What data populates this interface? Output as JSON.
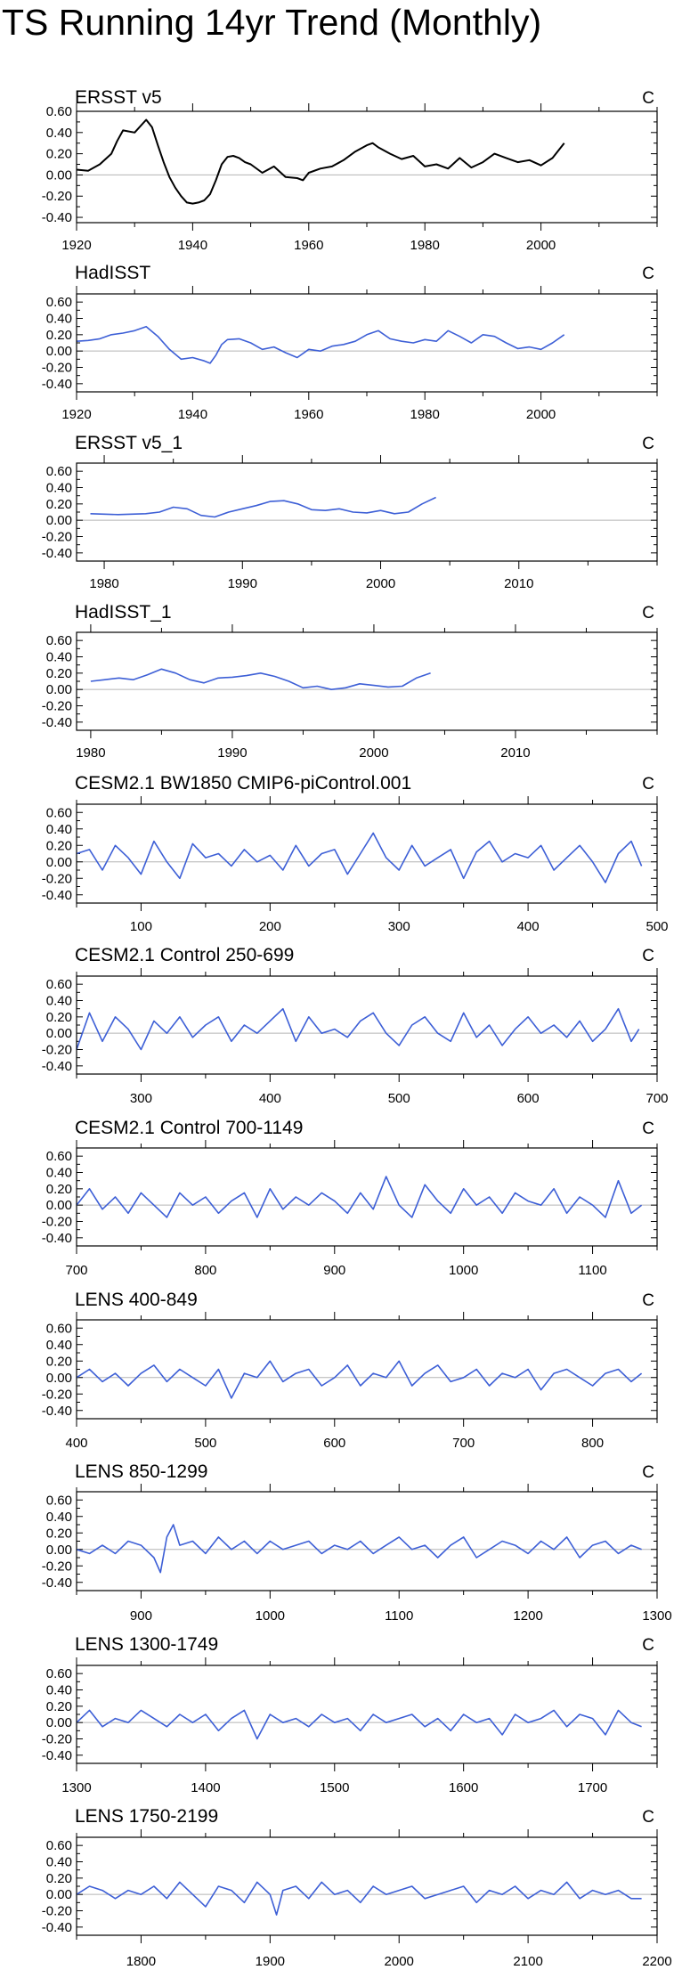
{
  "title": "TS Running 14yr Trend (Monthly)",
  "chart_data": [
    {
      "type": "line",
      "title": "ERSST v5",
      "unit": "C",
      "color": "#000000",
      "xlim": [
        1920,
        2020
      ],
      "ylim": [
        -0.45,
        0.6
      ],
      "yticks": [
        "0.60",
        "0.40",
        "0.20",
        "0.00",
        "-0.20",
        "-0.40"
      ],
      "ytick_values": [
        0.6,
        0.4,
        0.2,
        0.0,
        -0.2,
        -0.4
      ],
      "xticks": [
        1920,
        1940,
        1960,
        1980,
        2000
      ],
      "x": [
        1920,
        1922,
        1924,
        1926,
        1927,
        1928,
        1930,
        1932,
        1933,
        1934,
        1935,
        1936,
        1937,
        1938,
        1939,
        1940,
        1941,
        1942,
        1943,
        1944,
        1945,
        1946,
        1947,
        1948,
        1949,
        1950,
        1952,
        1954,
        1956,
        1958,
        1959,
        1960,
        1962,
        1964,
        1966,
        1968,
        1970,
        1971,
        1972,
        1974,
        1976,
        1978,
        1980,
        1982,
        1984,
        1986,
        1988,
        1990,
        1992,
        1994,
        1996,
        1998,
        2000,
        2002,
        2004
      ],
      "y": [
        0.05,
        0.04,
        0.1,
        0.2,
        0.32,
        0.42,
        0.4,
        0.52,
        0.45,
        0.28,
        0.12,
        -0.02,
        -0.12,
        -0.2,
        -0.26,
        -0.27,
        -0.26,
        -0.24,
        -0.18,
        -0.05,
        0.1,
        0.17,
        0.18,
        0.16,
        0.12,
        0.1,
        0.02,
        0.08,
        -0.02,
        -0.03,
        -0.05,
        0.02,
        0.06,
        0.08,
        0.14,
        0.22,
        0.28,
        0.3,
        0.26,
        0.2,
        0.15,
        0.18,
        0.08,
        0.1,
        0.06,
        0.16,
        0.07,
        0.12,
        0.2,
        0.16,
        0.12,
        0.14,
        0.09,
        0.16,
        0.3
      ]
    },
    {
      "type": "line",
      "title": "HadISST",
      "unit": "C",
      "color": "#3d5fd6",
      "xlim": [
        1920,
        2020
      ],
      "ylim": [
        -0.5,
        0.7
      ],
      "yticks": [
        "0.60",
        "0.40",
        "0.20",
        "0.00",
        "-0.20",
        "-0.40"
      ],
      "ytick_values": [
        0.6,
        0.4,
        0.2,
        0.0,
        -0.2,
        -0.4
      ],
      "xticks": [
        1920,
        1940,
        1960,
        1980,
        2000
      ],
      "x": [
        1920,
        1922,
        1924,
        1926,
        1928,
        1930,
        1932,
        1934,
        1936,
        1938,
        1940,
        1942,
        1943,
        1944,
        1945,
        1946,
        1948,
        1950,
        1952,
        1954,
        1956,
        1958,
        1960,
        1962,
        1964,
        1966,
        1968,
        1970,
        1972,
        1974,
        1976,
        1978,
        1980,
        1982,
        1984,
        1986,
        1988,
        1990,
        1992,
        1994,
        1996,
        1998,
        2000,
        2002,
        2004
      ],
      "y": [
        0.12,
        0.13,
        0.15,
        0.2,
        0.22,
        0.25,
        0.3,
        0.18,
        0.02,
        -0.1,
        -0.08,
        -0.12,
        -0.15,
        -0.05,
        0.08,
        0.14,
        0.15,
        0.1,
        0.02,
        0.05,
        -0.02,
        -0.08,
        0.02,
        0.0,
        0.06,
        0.08,
        0.12,
        0.2,
        0.25,
        0.15,
        0.12,
        0.1,
        0.14,
        0.12,
        0.25,
        0.18,
        0.1,
        0.2,
        0.18,
        0.1,
        0.03,
        0.05,
        0.02,
        0.1,
        0.2
      ]
    },
    {
      "type": "line",
      "title": "ERSST v5_1",
      "unit": "C",
      "color": "#3d5fd6",
      "xlim": [
        1978,
        2020
      ],
      "ylim": [
        -0.5,
        0.7
      ],
      "yticks": [
        "0.60",
        "0.40",
        "0.20",
        "0.00",
        "-0.20",
        "-0.40"
      ],
      "ytick_values": [
        0.6,
        0.4,
        0.2,
        0.0,
        -0.2,
        -0.4
      ],
      "xticks": [
        1980,
        1990,
        2000,
        2010
      ],
      "x": [
        1979,
        1981,
        1983,
        1984,
        1985,
        1986,
        1987,
        1988,
        1989,
        1990,
        1991,
        1992,
        1993,
        1994,
        1995,
        1996,
        1997,
        1998,
        1999,
        2000,
        2001,
        2002,
        2003,
        2004
      ],
      "y": [
        0.08,
        0.07,
        0.08,
        0.1,
        0.16,
        0.14,
        0.06,
        0.04,
        0.1,
        0.14,
        0.18,
        0.23,
        0.24,
        0.2,
        0.13,
        0.12,
        0.14,
        0.1,
        0.09,
        0.12,
        0.08,
        0.1,
        0.2,
        0.28
      ]
    },
    {
      "type": "line",
      "title": "HadISST_1",
      "unit": "C",
      "color": "#3d5fd6",
      "xlim": [
        1979,
        2020
      ],
      "ylim": [
        -0.5,
        0.7
      ],
      "yticks": [
        "0.60",
        "0.40",
        "0.20",
        "0.00",
        "-0.20",
        "-0.40"
      ],
      "ytick_values": [
        0.6,
        0.4,
        0.2,
        0.0,
        -0.2,
        -0.4
      ],
      "xticks": [
        1980,
        1990,
        2000,
        2010
      ],
      "x": [
        1980,
        1981,
        1982,
        1983,
        1984,
        1985,
        1986,
        1987,
        1988,
        1989,
        1990,
        1991,
        1992,
        1993,
        1994,
        1995,
        1996,
        1997,
        1998,
        1999,
        2000,
        2001,
        2002,
        2003,
        2004
      ],
      "y": [
        0.1,
        0.12,
        0.14,
        0.12,
        0.18,
        0.25,
        0.2,
        0.12,
        0.08,
        0.14,
        0.15,
        0.17,
        0.2,
        0.16,
        0.1,
        0.02,
        0.04,
        0.0,
        0.02,
        0.07,
        0.05,
        0.03,
        0.04,
        0.14,
        0.2
      ]
    },
    {
      "type": "line",
      "title": "CESM2.1 BW1850 CMIP6-piControl.001",
      "unit": "C",
      "color": "#3d5fd6",
      "xlim": [
        50,
        500
      ],
      "ylim": [
        -0.5,
        0.7
      ],
      "yticks": [
        "0.60",
        "0.40",
        "0.20",
        "0.00",
        "-0.20",
        "-0.40"
      ],
      "ytick_values": [
        0.6,
        0.4,
        0.2,
        0.0,
        -0.2,
        -0.4
      ],
      "xticks": [
        100,
        200,
        300,
        400,
        500
      ],
      "x": [
        50,
        60,
        70,
        80,
        90,
        100,
        110,
        120,
        130,
        140,
        150,
        160,
        170,
        180,
        190,
        200,
        210,
        220,
        230,
        240,
        250,
        260,
        270,
        280,
        290,
        300,
        310,
        320,
        330,
        340,
        350,
        360,
        370,
        380,
        390,
        400,
        410,
        420,
        430,
        440,
        450,
        460,
        470,
        480,
        488
      ],
      "y": [
        0.1,
        0.15,
        -0.1,
        0.2,
        0.05,
        -0.15,
        0.25,
        0.0,
        -0.2,
        0.22,
        0.05,
        0.1,
        -0.05,
        0.15,
        0.0,
        0.08,
        -0.1,
        0.2,
        -0.05,
        0.1,
        0.15,
        -0.15,
        0.1,
        0.35,
        0.05,
        -0.1,
        0.2,
        -0.05,
        0.05,
        0.15,
        -0.2,
        0.12,
        0.25,
        0.0,
        0.1,
        0.05,
        0.2,
        -0.1,
        0.05,
        0.2,
        0.0,
        -0.25,
        0.1,
        0.25,
        -0.05
      ]
    },
    {
      "type": "line",
      "title": "CESM2.1 Control 250-699",
      "unit": "C",
      "color": "#3d5fd6",
      "xlim": [
        250,
        700
      ],
      "ylim": [
        -0.5,
        0.7
      ],
      "yticks": [
        "0.60",
        "0.40",
        "0.20",
        "0.00",
        "-0.20",
        "-0.40"
      ],
      "ytick_values": [
        0.6,
        0.4,
        0.2,
        0.0,
        -0.2,
        -0.4
      ],
      "xticks": [
        300,
        400,
        500,
        600,
        700
      ],
      "x": [
        250,
        260,
        270,
        280,
        290,
        300,
        310,
        320,
        330,
        340,
        350,
        360,
        370,
        380,
        390,
        400,
        410,
        420,
        430,
        440,
        450,
        460,
        470,
        480,
        490,
        500,
        510,
        520,
        530,
        540,
        550,
        560,
        570,
        580,
        590,
        600,
        610,
        620,
        630,
        640,
        650,
        660,
        670,
        680,
        686
      ],
      "y": [
        -0.2,
        0.25,
        -0.1,
        0.2,
        0.05,
        -0.2,
        0.15,
        0.0,
        0.2,
        -0.05,
        0.1,
        0.2,
        -0.1,
        0.1,
        0.0,
        0.15,
        0.3,
        -0.1,
        0.2,
        0.0,
        0.05,
        -0.05,
        0.15,
        0.25,
        0.0,
        -0.15,
        0.1,
        0.2,
        0.0,
        -0.1,
        0.25,
        -0.05,
        0.1,
        -0.15,
        0.05,
        0.2,
        0.0,
        0.1,
        -0.05,
        0.15,
        -0.1,
        0.05,
        0.3,
        -0.1,
        0.05
      ]
    },
    {
      "type": "line",
      "title": "CESM2.1 Control 700-1149",
      "unit": "C",
      "color": "#3d5fd6",
      "xlim": [
        700,
        1150
      ],
      "ylim": [
        -0.5,
        0.7
      ],
      "yticks": [
        "0.60",
        "0.40",
        "0.20",
        "0.00",
        "-0.20",
        "-0.40"
      ],
      "ytick_values": [
        0.6,
        0.4,
        0.2,
        0.0,
        -0.2,
        -0.4
      ],
      "xticks": [
        700,
        800,
        900,
        1000,
        1100
      ],
      "x": [
        700,
        710,
        720,
        730,
        740,
        750,
        760,
        770,
        780,
        790,
        800,
        810,
        820,
        830,
        840,
        850,
        860,
        870,
        880,
        890,
        900,
        910,
        920,
        930,
        940,
        950,
        960,
        970,
        980,
        990,
        1000,
        1010,
        1020,
        1030,
        1040,
        1050,
        1060,
        1070,
        1080,
        1090,
        1100,
        1110,
        1120,
        1130,
        1138
      ],
      "y": [
        0.0,
        0.2,
        -0.05,
        0.1,
        -0.1,
        0.15,
        0.0,
        -0.15,
        0.15,
        0.0,
        0.1,
        -0.1,
        0.05,
        0.15,
        -0.15,
        0.2,
        -0.05,
        0.1,
        0.0,
        0.15,
        0.05,
        -0.1,
        0.15,
        -0.05,
        0.35,
        0.0,
        -0.15,
        0.25,
        0.05,
        -0.1,
        0.2,
        0.0,
        0.1,
        -0.1,
        0.15,
        0.05,
        0.0,
        0.2,
        -0.1,
        0.1,
        0.0,
        -0.15,
        0.3,
        -0.1,
        0.0
      ]
    },
    {
      "type": "line",
      "title": "LENS 400-849",
      "unit": "C",
      "color": "#3d5fd6",
      "xlim": [
        400,
        850
      ],
      "ylim": [
        -0.5,
        0.7
      ],
      "yticks": [
        "0.60",
        "0.40",
        "0.20",
        "0.00",
        "-0.20",
        "-0.40"
      ],
      "ytick_values": [
        0.6,
        0.4,
        0.2,
        0.0,
        -0.2,
        -0.4
      ],
      "xticks": [
        400,
        500,
        600,
        700,
        800
      ],
      "x": [
        400,
        410,
        420,
        430,
        440,
        450,
        460,
        470,
        480,
        490,
        500,
        510,
        520,
        530,
        540,
        550,
        560,
        570,
        580,
        590,
        600,
        610,
        620,
        630,
        640,
        650,
        660,
        670,
        680,
        690,
        700,
        710,
        720,
        730,
        740,
        750,
        760,
        770,
        780,
        790,
        800,
        810,
        820,
        830,
        838
      ],
      "y": [
        0.0,
        0.1,
        -0.05,
        0.05,
        -0.1,
        0.05,
        0.15,
        -0.05,
        0.1,
        0.0,
        -0.1,
        0.1,
        -0.25,
        0.05,
        0.0,
        0.2,
        -0.05,
        0.05,
        0.1,
        -0.1,
        0.0,
        0.15,
        -0.1,
        0.05,
        0.0,
        0.2,
        -0.1,
        0.05,
        0.15,
        -0.05,
        0.0,
        0.1,
        -0.1,
        0.05,
        0.0,
        0.1,
        -0.15,
        0.05,
        0.1,
        0.0,
        -0.1,
        0.05,
        0.1,
        -0.05,
        0.05
      ]
    },
    {
      "type": "line",
      "title": "LENS 850-1299",
      "unit": "C",
      "color": "#3d5fd6",
      "xlim": [
        850,
        1300
      ],
      "ylim": [
        -0.5,
        0.7
      ],
      "yticks": [
        "0.60",
        "0.40",
        "0.20",
        "0.00",
        "-0.20",
        "-0.40"
      ],
      "ytick_values": [
        0.6,
        0.4,
        0.2,
        0.0,
        -0.2,
        -0.4
      ],
      "xticks": [
        900,
        1000,
        1100,
        1200,
        1300
      ],
      "x": [
        850,
        860,
        870,
        880,
        890,
        900,
        910,
        915,
        920,
        925,
        930,
        940,
        950,
        960,
        970,
        980,
        990,
        1000,
        1010,
        1020,
        1030,
        1040,
        1050,
        1060,
        1070,
        1080,
        1090,
        1100,
        1110,
        1120,
        1130,
        1140,
        1150,
        1160,
        1170,
        1180,
        1190,
        1200,
        1210,
        1220,
        1230,
        1240,
        1250,
        1260,
        1270,
        1280,
        1288
      ],
      "y": [
        0.0,
        -0.05,
        0.05,
        -0.05,
        0.1,
        0.05,
        -0.1,
        -0.28,
        0.15,
        0.3,
        0.05,
        0.1,
        -0.05,
        0.15,
        0.0,
        0.1,
        -0.05,
        0.1,
        0.0,
        0.05,
        0.1,
        -0.05,
        0.05,
        0.0,
        0.1,
        -0.05,
        0.05,
        0.15,
        0.0,
        0.05,
        -0.1,
        0.05,
        0.15,
        -0.1,
        0.0,
        0.1,
        0.05,
        -0.05,
        0.1,
        0.0,
        0.15,
        -0.1,
        0.05,
        0.1,
        -0.05,
        0.05,
        0.0
      ]
    },
    {
      "type": "line",
      "title": "LENS 1300-1749",
      "unit": "C",
      "color": "#3d5fd6",
      "xlim": [
        1300,
        1750
      ],
      "ylim": [
        -0.5,
        0.7
      ],
      "yticks": [
        "0.60",
        "0.40",
        "0.20",
        "0.00",
        "-0.20",
        "-0.40"
      ],
      "ytick_values": [
        0.6,
        0.4,
        0.2,
        0.0,
        -0.2,
        -0.4
      ],
      "xticks": [
        1300,
        1400,
        1500,
        1600,
        1700
      ],
      "x": [
        1300,
        1310,
        1320,
        1330,
        1340,
        1350,
        1360,
        1370,
        1380,
        1390,
        1400,
        1410,
        1420,
        1430,
        1440,
        1450,
        1460,
        1470,
        1480,
        1490,
        1500,
        1510,
        1520,
        1530,
        1540,
        1550,
        1560,
        1570,
        1580,
        1590,
        1600,
        1610,
        1620,
        1630,
        1640,
        1650,
        1660,
        1670,
        1680,
        1690,
        1700,
        1710,
        1720,
        1730,
        1738
      ],
      "y": [
        0.0,
        0.15,
        -0.05,
        0.05,
        0.0,
        0.15,
        0.05,
        -0.05,
        0.1,
        0.0,
        0.1,
        -0.1,
        0.05,
        0.15,
        -0.2,
        0.1,
        0.0,
        0.05,
        -0.05,
        0.1,
        0.0,
        0.05,
        -0.1,
        0.1,
        0.0,
        0.05,
        0.1,
        -0.05,
        0.05,
        -0.1,
        0.1,
        0.0,
        0.05,
        -0.15,
        0.1,
        0.0,
        0.05,
        0.15,
        -0.05,
        0.1,
        0.05,
        -0.15,
        0.15,
        0.0,
        -0.05
      ]
    },
    {
      "type": "line",
      "title": "LENS 1750-2199",
      "unit": "C",
      "color": "#3d5fd6",
      "xlim": [
        1750,
        2200
      ],
      "ylim": [
        -0.5,
        0.7
      ],
      "yticks": [
        "0.60",
        "0.40",
        "0.20",
        "0.00",
        "-0.20",
        "-0.40"
      ],
      "ytick_values": [
        0.6,
        0.4,
        0.2,
        0.0,
        -0.2,
        -0.4
      ],
      "xticks": [
        1800,
        1900,
        2000,
        2100,
        2200
      ],
      "x": [
        1750,
        1760,
        1770,
        1780,
        1790,
        1800,
        1810,
        1820,
        1830,
        1840,
        1850,
        1860,
        1870,
        1880,
        1890,
        1900,
        1905,
        1910,
        1920,
        1930,
        1940,
        1950,
        1960,
        1970,
        1980,
        1990,
        2000,
        2010,
        2020,
        2030,
        2040,
        2050,
        2060,
        2070,
        2080,
        2090,
        2100,
        2110,
        2120,
        2130,
        2140,
        2150,
        2160,
        2170,
        2180,
        2188
      ],
      "y": [
        0.0,
        0.1,
        0.05,
        -0.05,
        0.05,
        0.0,
        0.1,
        -0.05,
        0.15,
        0.0,
        -0.15,
        0.1,
        0.05,
        -0.1,
        0.15,
        0.0,
        -0.25,
        0.05,
        0.1,
        -0.05,
        0.15,
        0.0,
        0.05,
        -0.1,
        0.1,
        0.0,
        0.05,
        0.1,
        -0.05,
        0.0,
        0.05,
        0.1,
        -0.1,
        0.05,
        0.0,
        0.1,
        -0.05,
        0.05,
        0.0,
        0.15,
        -0.05,
        0.05,
        0.0,
        0.05,
        -0.05,
        -0.05
      ]
    }
  ]
}
